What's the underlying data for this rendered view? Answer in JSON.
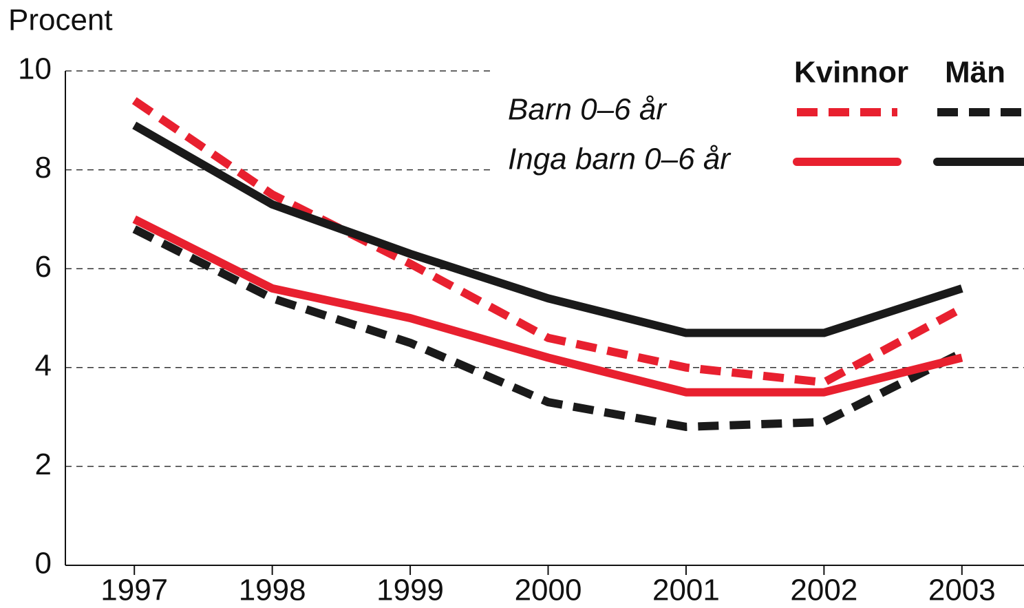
{
  "chart_data": {
    "type": "line",
    "ylabel": "Procent",
    "x": [
      1997,
      1998,
      1999,
      2000,
      2001,
      2002,
      2003
    ],
    "xlim": [
      1996.5,
      2003.45
    ],
    "ylim": [
      0,
      10
    ],
    "yticks": [
      0,
      2,
      4,
      6,
      8,
      10
    ],
    "grid": true,
    "legend_columns": [
      "Kvinnor",
      "Män"
    ],
    "legend_rows": [
      "Barn 0–6 år",
      "Inga barn 0–6 år"
    ],
    "series": [
      {
        "color": "#e8202f",
        "dashed": true,
        "values": [
          9.4,
          7.5,
          6.1,
          4.6,
          4.0,
          3.7,
          5.2
        ]
      },
      {
        "color": "#1a1a1a",
        "dashed": true,
        "values": [
          6.8,
          5.4,
          4.5,
          3.3,
          2.8,
          2.9,
          4.3
        ]
      },
      {
        "color": "#e8202f",
        "dashed": false,
        "values": [
          7.0,
          5.6,
          5.0,
          4.2,
          3.5,
          3.5,
          4.2
        ]
      },
      {
        "color": "#1a1a1a",
        "dashed": false,
        "values": [
          8.9,
          7.3,
          6.3,
          5.4,
          4.7,
          4.7,
          5.6
        ]
      }
    ]
  }
}
